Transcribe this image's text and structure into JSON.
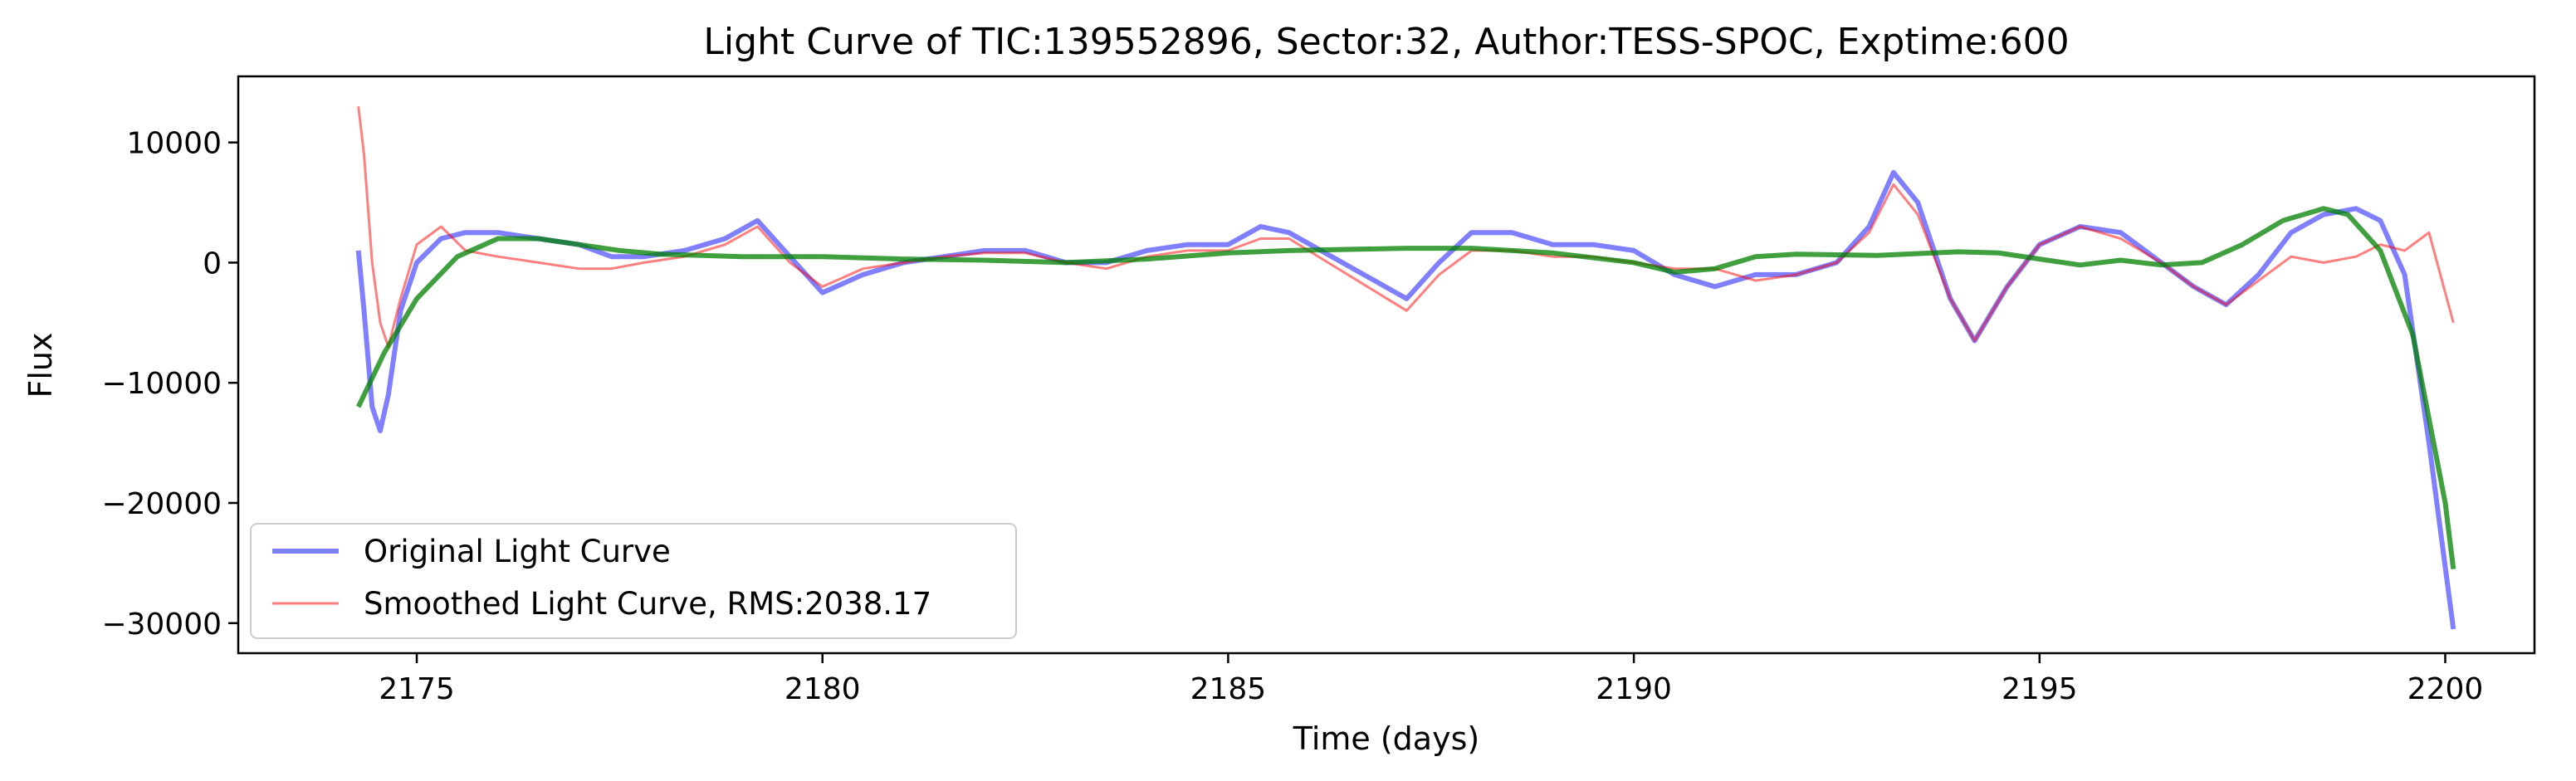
{
  "chart_data": {
    "type": "line",
    "title": "Light Curve of TIC:139552896, Sector:32, Author:TESS-SPOC, Exptime:600",
    "xlabel": "Time (days)",
    "ylabel": "Flux",
    "xlim": [
      2172.8,
      2201.1
    ],
    "ylim": [
      -32500,
      15500
    ],
    "xticks": [
      2175,
      2180,
      2185,
      2190,
      2195,
      2200
    ],
    "xtick_labels": [
      "2175",
      "2180",
      "2185",
      "2190",
      "2195",
      "2200"
    ],
    "yticks": [
      10000,
      0,
      -10000,
      -20000,
      -30000
    ],
    "ytick_labels": [
      "10000",
      "0",
      "−10000",
      "−20000",
      "−30000"
    ],
    "grid": false,
    "legend_position": "lower-left",
    "series": [
      {
        "name": "Original Light Curve",
        "color": "#0000ff",
        "opacity": 0.5,
        "x": [
          2174.28,
          2174.35,
          2174.45,
          2174.55,
          2174.65,
          2174.8,
          2175.0,
          2175.3,
          2175.6,
          2176.0,
          2176.5,
          2177.0,
          2177.4,
          2177.8,
          2178.3,
          2178.8,
          2179.2,
          2179.6,
          2180.0,
          2180.5,
          2181.0,
          2181.5,
          2182.0,
          2182.5,
          2183.0,
          2183.5,
          2184.0,
          2184.5,
          2185.0,
          2185.4,
          2185.75,
          2187.2,
          2187.6,
          2188.0,
          2188.5,
          2189.0,
          2189.5,
          2190.0,
          2190.5,
          2191.0,
          2191.5,
          2192.0,
          2192.5,
          2192.9,
          2193.2,
          2193.5,
          2193.9,
          2194.2,
          2194.6,
          2195.0,
          2195.5,
          2196.0,
          2196.5,
          2196.9,
          2197.3,
          2197.7,
          2198.1,
          2198.5,
          2198.9,
          2199.2,
          2199.5,
          2199.8,
          2200.1
        ],
        "y": [
          1000,
          -4000,
          -12000,
          -14000,
          -11000,
          -4000,
          0,
          2000,
          2500,
          2500,
          2000,
          1500,
          500,
          500,
          1000,
          2000,
          3500,
          500,
          -2500,
          -1000,
          0,
          500,
          1000,
          1000,
          0,
          0,
          1000,
          1500,
          1500,
          3000,
          2500,
          -3000,
          0,
          2500,
          2500,
          1500,
          1500,
          1000,
          -1000,
          -2000,
          -1000,
          -1000,
          0,
          3000,
          7500,
          5000,
          -3000,
          -6500,
          -2000,
          1500,
          3000,
          2500,
          0,
          -2000,
          -3500,
          -1000,
          2500,
          4000,
          4500,
          3500,
          -1000,
          -15000,
          -30500
        ]
      },
      {
        "name": "Smoothed Light Curve, RMS:2038.17",
        "color": "#ff0000",
        "opacity": 0.5,
        "x": [
          2174.28,
          2174.35,
          2174.45,
          2174.55,
          2174.65,
          2174.8,
          2175.0,
          2175.3,
          2175.6,
          2176.0,
          2176.5,
          2177.0,
          2177.4,
          2177.8,
          2178.3,
          2178.8,
          2179.2,
          2179.6,
          2180.0,
          2180.5,
          2181.0,
          2181.5,
          2182.0,
          2182.5,
          2183.0,
          2183.5,
          2184.0,
          2184.5,
          2185.0,
          2185.4,
          2185.75,
          2187.2,
          2187.6,
          2188.0,
          2188.5,
          2189.0,
          2189.5,
          2190.0,
          2190.5,
          2191.0,
          2191.5,
          2192.0,
          2192.5,
          2192.9,
          2193.2,
          2193.5,
          2193.9,
          2194.2,
          2194.6,
          2195.0,
          2195.5,
          2196.0,
          2196.5,
          2196.9,
          2197.3,
          2197.7,
          2198.1,
          2198.5,
          2198.9,
          2199.2,
          2199.5,
          2199.8,
          2200.1
        ],
        "y": [
          13000,
          9000,
          0,
          -5000,
          -7000,
          -3000,
          1500,
          3000,
          1000,
          500,
          0,
          -500,
          -500,
          0,
          500,
          1500,
          3000,
          0,
          -2000,
          -500,
          0,
          500,
          800,
          800,
          0,
          -500,
          500,
          1000,
          1000,
          2000,
          2000,
          -4000,
          -1000,
          1000,
          1000,
          500,
          500,
          0,
          -500,
          -500,
          -1500,
          -1000,
          0,
          2500,
          6500,
          4000,
          -3000,
          -6500,
          -2000,
          1500,
          3000,
          2000,
          0,
          -2000,
          -3500,
          -1500,
          500,
          0,
          500,
          1500,
          1000,
          2500,
          -5000
        ]
      },
      {
        "name": "",
        "color": "#008000",
        "opacity": 0.75,
        "x": [
          2174.28,
          2174.6,
          2175.0,
          2175.5,
          2176.0,
          2176.5,
          2177.0,
          2177.5,
          2178.0,
          2179.0,
          2180.0,
          2181.0,
          2182.0,
          2183.0,
          2184.0,
          2185.0,
          2185.75,
          2187.2,
          2188.0,
          2189.0,
          2190.0,
          2190.5,
          2191.0,
          2191.5,
          2192.0,
          2193.0,
          2194.0,
          2194.5,
          2195.0,
          2195.5,
          2196.0,
          2196.5,
          2197.0,
          2197.5,
          2198.0,
          2198.5,
          2198.8,
          2199.2,
          2199.6,
          2200.0,
          2200.1
        ],
        "y": [
          -12000,
          -7500,
          -3000,
          500,
          2000,
          2000,
          1500,
          1000,
          700,
          500,
          500,
          300,
          200,
          0,
          300,
          800,
          1000,
          1200,
          1200,
          800,
          0,
          -800,
          -500,
          500,
          700,
          600,
          900,
          800,
          300,
          -200,
          200,
          -200,
          0,
          1500,
          3500,
          4500,
          4000,
          1000,
          -6000,
          -20000,
          -25500
        ]
      }
    ]
  }
}
